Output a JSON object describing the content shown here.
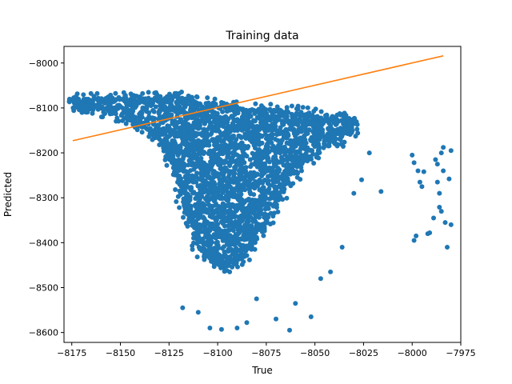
{
  "chart_data": {
    "type": "scatter",
    "title": "Training data",
    "xlabel": "True",
    "ylabel": "Predicted",
    "xlim": [
      -8179,
      -7975
    ],
    "ylim": [
      -8622,
      -7963
    ],
    "xticks": [
      -8175,
      -8150,
      -8125,
      -8100,
      -8075,
      -8050,
      -8025,
      -8000,
      -7975
    ],
    "yticks": [
      -8000,
      -8100,
      -8200,
      -8300,
      -8400,
      -8500,
      -8600
    ],
    "grid": false,
    "colors": {
      "points": "#1f77b4",
      "line": "#ff7f0e"
    },
    "line": {
      "x": [
        -8174.5,
        -7984
      ],
      "y": [
        -8173,
        -7984
      ]
    },
    "main_cloud": {
      "description_values": "dense band of points",
      "top_edge": [
        [
          -8174,
          -8081
        ],
        [
          -8165,
          -8079
        ],
        [
          -8155,
          -8078
        ],
        [
          -8145,
          -8078
        ],
        [
          -8135,
          -8077
        ],
        [
          -8122,
          -8074
        ],
        [
          -8115,
          -8081
        ],
        [
          -8100,
          -8090
        ],
        [
          -8085,
          -8099
        ],
        [
          -8070,
          -8104
        ],
        [
          -8055,
          -8110
        ],
        [
          -8040,
          -8117
        ],
        [
          -8030,
          -8121
        ]
      ],
      "bottom_edge": [
        [
          -8030,
          -8156
        ],
        [
          -8040,
          -8178
        ],
        [
          -8052,
          -8208
        ],
        [
          -8062,
          -8260
        ],
        [
          -8072,
          -8335
        ],
        [
          -8080,
          -8400
        ],
        [
          -8088,
          -8440
        ],
        [
          -8095,
          -8455
        ],
        [
          -8102,
          -8445
        ],
        [
          -8110,
          -8410
        ],
        [
          -8116,
          -8340
        ],
        [
          -8122,
          -8250
        ],
        [
          -8127,
          -8190
        ],
        [
          -8135,
          -8156
        ],
        [
          -8145,
          -8128
        ],
        [
          -8155,
          -8114
        ],
        [
          -8165,
          -8104
        ],
        [
          -8174,
          -8097
        ]
      ]
    },
    "outliers": [
      [
        -8118,
        -8545
      ],
      [
        -8110,
        -8555
      ],
      [
        -8104,
        -8590
      ],
      [
        -8098,
        -8593
      ],
      [
        -8090,
        -8590
      ],
      [
        -8085,
        -8578
      ],
      [
        -8080,
        -8525
      ],
      [
        -8070,
        -8570
      ],
      [
        -8063,
        -8595
      ],
      [
        -8060,
        -8535
      ],
      [
        -8052,
        -8565
      ],
      [
        -8047,
        -8480
      ],
      [
        -8042,
        -8465
      ],
      [
        -8036,
        -8410
      ],
      [
        -8030,
        -8290
      ],
      [
        -8026,
        -8260
      ],
      [
        -8022,
        -8200
      ],
      [
        -8016,
        -8286
      ],
      [
        -8000,
        -8205
      ],
      [
        -7999,
        -8222
      ],
      [
        -7999,
        -8395
      ],
      [
        -7998,
        -8385
      ],
      [
        -7997,
        -8240
      ],
      [
        -7996,
        -8265
      ],
      [
        -7995,
        -8275
      ],
      [
        -7994,
        -8242
      ],
      [
        -7992,
        -8380
      ],
      [
        -7991,
        -8378
      ],
      [
        -7989,
        -8345
      ],
      [
        -7988,
        -8215
      ],
      [
        -7987,
        -8225
      ],
      [
        -7987,
        -8265
      ],
      [
        -7986,
        -8290
      ],
      [
        -7986,
        -8321
      ],
      [
        -7985,
        -8200
      ],
      [
        -7985,
        -8330
      ],
      [
        -7984,
        -8188
      ],
      [
        -7984,
        -8240
      ],
      [
        -7983,
        -8355
      ],
      [
        -7982,
        -8410
      ],
      [
        -7981,
        -8258
      ],
      [
        -7980,
        -8195
      ],
      [
        -7980,
        -8360
      ]
    ]
  }
}
